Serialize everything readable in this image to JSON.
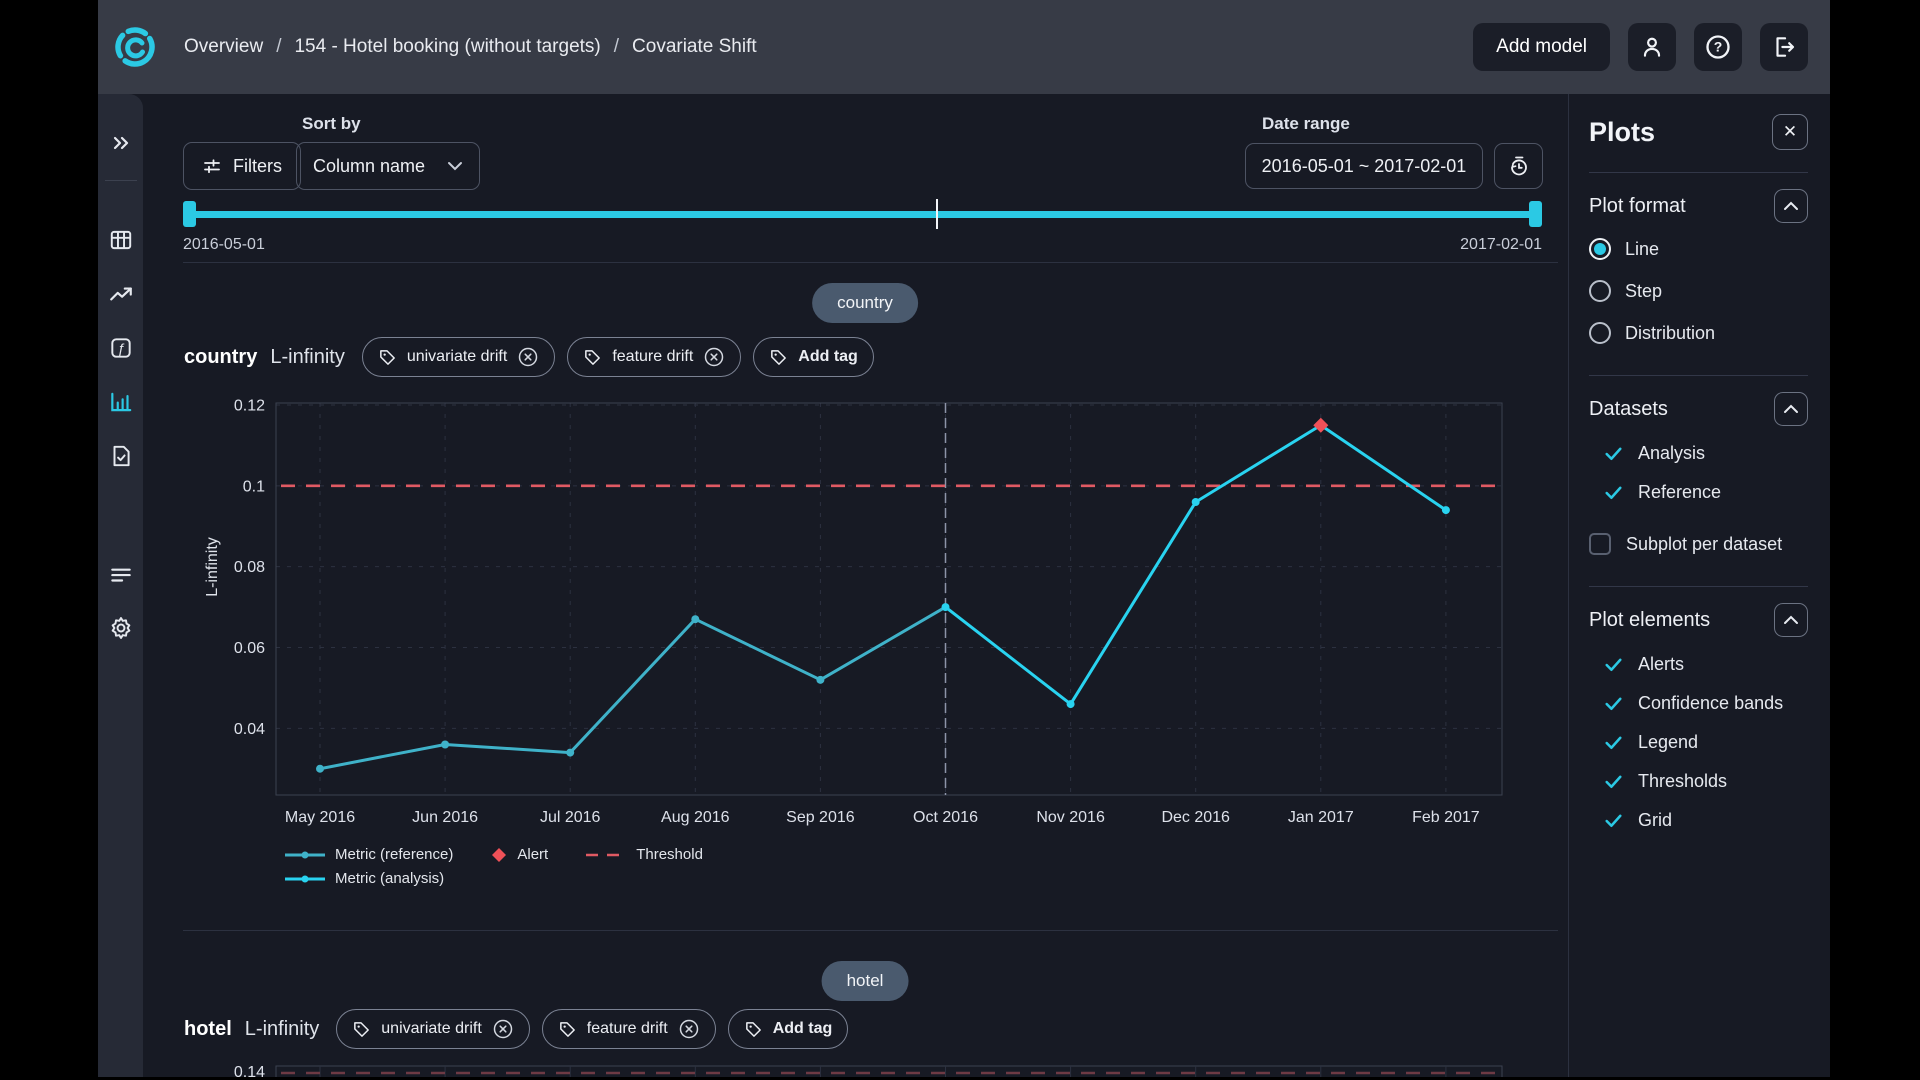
{
  "topbar": {
    "breadcrumb": [
      "Overview",
      "154 - Hotel booking (without targets)",
      "Covariate Shift"
    ],
    "separator": "/",
    "add_model": "Add model"
  },
  "toolbar": {
    "sort_by_label": "Sort by",
    "filters": "Filters",
    "sort_value": "Column name",
    "date_range_label": "Date range",
    "date_range_value": "2016-05-01 ~ 2017-02-01"
  },
  "timeline": {
    "start_label": "2016-05-01",
    "end_label": "2017-02-01"
  },
  "sections": [
    {
      "chip": "country",
      "name": "country",
      "metric": "L-infinity",
      "tags": [
        "univariate drift",
        "feature drift"
      ],
      "add_tag": "Add tag"
    },
    {
      "chip": "hotel",
      "name": "hotel",
      "metric": "L-infinity",
      "tags": [
        "univariate drift",
        "feature drift"
      ],
      "add_tag": "Add tag"
    }
  ],
  "legend": {
    "items": [
      {
        "swatch": "line-reference",
        "label": "Metric (reference)"
      },
      {
        "swatch": "diamond",
        "label": "Alert"
      },
      {
        "swatch": "dash",
        "label": "Threshold"
      },
      {
        "swatch": "line-analysis",
        "label": "Metric (analysis)"
      }
    ]
  },
  "chart_data": {
    "type": "line",
    "title": "country L-infinity",
    "ylabel": "L-infinity",
    "categories": [
      "May 2016",
      "Jun 2016",
      "Jul 2016",
      "Aug 2016",
      "Sep 2016",
      "Oct 2016",
      "Nov 2016",
      "Dec 2016",
      "Jan 2017",
      "Feb 2017"
    ],
    "series": [
      {
        "name": "L-infinity metric",
        "values": [
          0.03,
          0.036,
          0.034,
          0.067,
          0.052,
          0.07,
          0.046,
          0.096,
          0.115,
          0.094
        ]
      }
    ],
    "reference_split_index": 5,
    "alert_indices": [
      8
    ],
    "threshold": 0.1,
    "ylim": [
      0.0235,
      0.1205
    ],
    "yticks": [
      0.04,
      0.06,
      0.08,
      0.1,
      0.12
    ],
    "ytick_labels": [
      "0.04",
      "0.06",
      "0.08",
      "0.1",
      "0.12"
    ],
    "grid": true,
    "legend_position": "bottom"
  },
  "hotel_chart": {
    "first_ytick": "0.14"
  },
  "panel": {
    "title": "Plots",
    "plot_format": {
      "header": "Plot format",
      "options": [
        {
          "label": "Line",
          "selected": true
        },
        {
          "label": "Step",
          "selected": false
        },
        {
          "label": "Distribution",
          "selected": false
        }
      ]
    },
    "datasets": {
      "header": "Datasets",
      "checked": [
        "Analysis",
        "Reference"
      ],
      "subplot_label": "Subplot per dataset",
      "subplot_checked": false
    },
    "plot_elements": {
      "header": "Plot elements",
      "checked": [
        "Alerts",
        "Confidence bands",
        "Legend",
        "Thresholds",
        "Grid"
      ]
    }
  },
  "colors": {
    "accent": "#2bc9e4",
    "analysis_line": "#29d3f0",
    "reference_line": "#3fb2c9",
    "alert": "#ef5158",
    "threshold": "#e05a63",
    "chip_bg": "#4a5a6e"
  }
}
